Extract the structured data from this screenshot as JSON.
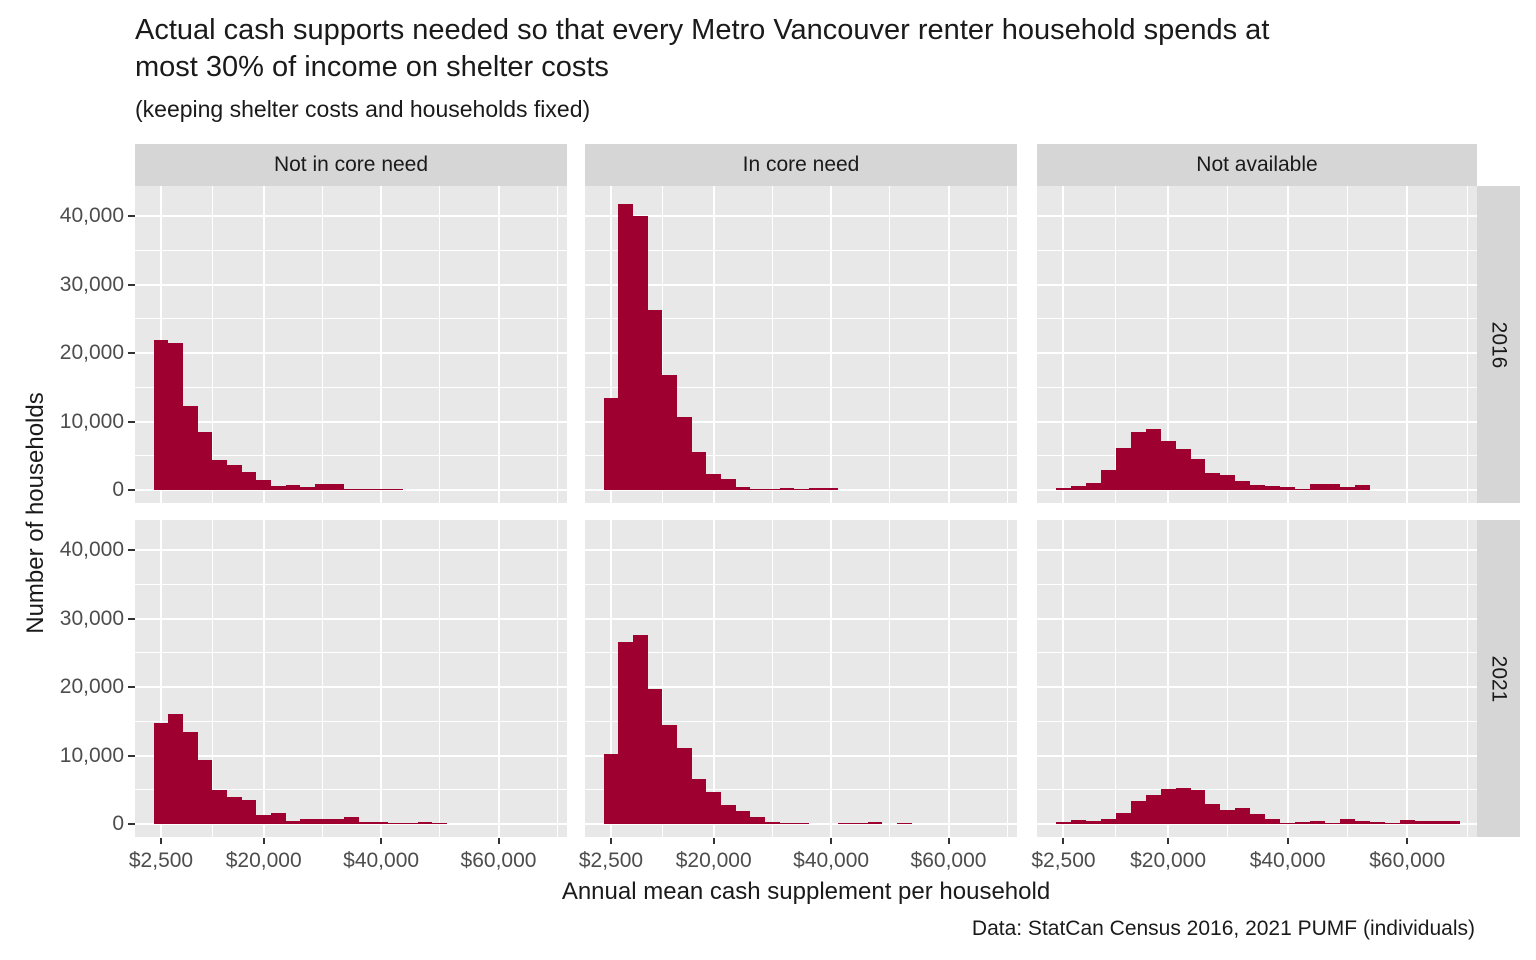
{
  "title": "Actual cash supports needed so that every Metro Vancouver renter household spends at most 30% of income on shelter costs",
  "subtitle": "(keeping shelter costs and households fixed)",
  "caption": "Data: StatCan Census 2016, 2021 PUMF (individuals)",
  "x_axis_title": "Annual mean cash supplement per household",
  "y_axis_title": "Number of households",
  "colors": {
    "bar": "#9e0030",
    "panel_bg": "#e8e8e8",
    "strip_bg": "#d6d6d6",
    "grid": "#ffffff",
    "axis_text": "#4d4d4d",
    "title_text": "#1a1a1a"
  },
  "chart_data": {
    "type": "bar",
    "subtype": "faceted-histogram",
    "facet_cols": [
      "Not in core need",
      "In core need",
      "Not available"
    ],
    "facet_rows": [
      "2016",
      "2021"
    ],
    "bin_width": 2500,
    "bin_centers": [
      2500,
      5000,
      7500,
      10000,
      12500,
      15000,
      17500,
      20000,
      22500,
      25000,
      27500,
      30000,
      32500,
      35000,
      37500,
      40000,
      42500,
      45000,
      47500,
      50000,
      52500,
      55000,
      57500,
      60000,
      62500,
      65000,
      67500
    ],
    "x_ticks": {
      "values": [
        2500,
        20000,
        40000,
        60000
      ],
      "labels": [
        "$2,500",
        "$20,000",
        "$40,000",
        "$60,000"
      ]
    },
    "y_ticks": {
      "values": [
        0,
        10000,
        20000,
        30000,
        40000
      ],
      "labels": [
        "0",
        "10,000",
        "20,000",
        "30,000",
        "40,000"
      ]
    },
    "x_minor": [
      11250,
      30000,
      50000,
      70000
    ],
    "y_minor": [
      5000,
      15000,
      25000,
      35000
    ],
    "xlim": [
      -1930,
      71670
    ],
    "ylim": [
      -1900,
      44400
    ],
    "grid": "on",
    "series": [
      {
        "row": "2016",
        "col": "Not in core need",
        "values": [
          21900,
          21400,
          12200,
          8400,
          4400,
          3700,
          2600,
          1500,
          600,
          750,
          400,
          900,
          850,
          200,
          150,
          150,
          100,
          0,
          0,
          0,
          0,
          0,
          0,
          0,
          0,
          0,
          0
        ]
      },
      {
        "row": "2016",
        "col": "In core need",
        "values": [
          13500,
          41800,
          40000,
          26300,
          16800,
          10600,
          5600,
          2300,
          1600,
          500,
          150,
          100,
          350,
          150,
          300,
          250,
          0,
          0,
          0,
          0,
          0,
          0,
          0,
          0,
          0,
          0,
          0
        ]
      },
      {
        "row": "2016",
        "col": "Not available",
        "values": [
          300,
          600,
          950,
          2900,
          6200,
          8400,
          8900,
          7100,
          6000,
          4500,
          2500,
          2200,
          1300,
          800,
          600,
          500,
          100,
          900,
          900,
          400,
          800,
          0,
          0,
          0,
          0,
          0,
          0
        ]
      },
      {
        "row": "2021",
        "col": "Not in core need",
        "values": [
          14800,
          16100,
          13400,
          9300,
          4900,
          4000,
          3500,
          1300,
          1650,
          500,
          800,
          700,
          800,
          1000,
          350,
          300,
          150,
          200,
          300,
          100,
          0,
          0,
          0,
          0,
          0,
          0,
          0
        ]
      },
      {
        "row": "2021",
        "col": "In core need",
        "values": [
          10200,
          26600,
          27600,
          19700,
          14500,
          11100,
          6600,
          4600,
          2800,
          1900,
          1000,
          350,
          150,
          100,
          0,
          0,
          150,
          150,
          300,
          0,
          200,
          0,
          0,
          0,
          0,
          0,
          0
        ]
      },
      {
        "row": "2021",
        "col": "Not available",
        "values": [
          300,
          600,
          500,
          800,
          1600,
          3400,
          4300,
          5100,
          5300,
          4900,
          2900,
          2000,
          2400,
          1400,
          800,
          200,
          250,
          450,
          200,
          700,
          450,
          350,
          150,
          600,
          450,
          400,
          400
        ]
      }
    ]
  }
}
